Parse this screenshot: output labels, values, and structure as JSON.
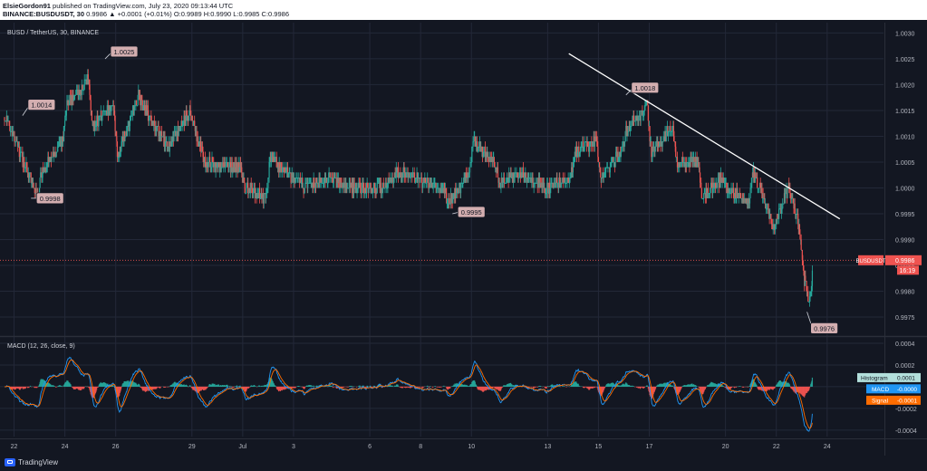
{
  "header": {
    "author": "ElsieGordon91",
    "published": "published on TradingView.com, July 23, 2020 09:13:44 UTC",
    "symbol_line": "BINANCE:BUSDUSDT, 30",
    "price": "0.9986",
    "change": "▲ +0.0001 (+0.01%)",
    "ohlc": "O:0.9989 H:0.9990 L:0.9985 C:0.9986"
  },
  "brand": "TradingView",
  "chart_data": [
    {
      "type": "candlestick",
      "title": "BUSD / TetherUS, 30, BINANCE",
      "x_tick_labels": [
        "22",
        "24",
        "26",
        "29",
        "Jul",
        "3",
        "6",
        "8",
        "10",
        "13",
        "15",
        "17",
        "20",
        "22",
        "24"
      ],
      "y_tick_labels": [
        "1.0030",
        "1.0025",
        "1.0020",
        "1.0015",
        "1.0010",
        "1.0005",
        "1.0000",
        "0.9995",
        "0.9990",
        "0.9985",
        "0.9980",
        "0.9975"
      ],
      "ylim": [
        0.99715,
        1.0032
      ],
      "grid": true,
      "last_price": 0.9986,
      "price_label": "BUSDUSDT",
      "price_value": "0.9986",
      "countdown": "16:19",
      "price_colors": {
        "up": "#26a69a",
        "down": "#ef5350"
      },
      "annotations": [
        {
          "label": "1.0014",
          "date": "Jun 22",
          "value": 1.0014
        },
        {
          "label": "0.9998",
          "date": "Jun 22",
          "value": 0.9998
        },
        {
          "label": "1.0025",
          "date": "Jun 25",
          "value": 1.0025
        },
        {
          "label": "0.9995",
          "date": "Jul 9",
          "value": 0.9995
        },
        {
          "label": "1.0018",
          "date": "Jul 16",
          "value": 1.0018
        },
        {
          "label": "0.9976",
          "date": "Jul 23",
          "value": 0.9976
        }
      ],
      "trendline": {
        "start": {
          "date": "Jul 13",
          "value": 1.0026
        },
        "end": {
          "date": "Jul 24",
          "value": 0.9994
        }
      },
      "path": [
        [
          "Jun 21",
          1.0015
        ],
        [
          "Jun 22",
          1.0009
        ],
        [
          "Jun 22",
          0.9998
        ],
        [
          "Jun 23",
          1.0003
        ],
        [
          "Jun 23",
          1.0009
        ],
        [
          "Jun 24",
          1.0016
        ],
        [
          "Jun 24",
          1.0021
        ],
        [
          "Jun 25",
          1.0012
        ],
        [
          "Jun 25",
          1.0016
        ],
        [
          "Jun 26",
          1.0006
        ],
        [
          "Jun 26",
          1.0018
        ],
        [
          "Jun 27",
          1.0012
        ],
        [
          "Jun 28",
          1.0008
        ],
        [
          "Jun 28",
          1.0015
        ],
        [
          "Jun 29",
          1.0005
        ],
        [
          "Jun 30",
          1.0004
        ],
        [
          "Jun 30",
          1.0004
        ],
        [
          "Jul 1",
          1.0
        ],
        [
          "Jul 1",
          0.9998
        ],
        [
          "Jul 2",
          1.0006
        ],
        [
          "Jul 2",
          1.0002
        ],
        [
          "Jul 3",
          1.0
        ],
        [
          "Jul 4",
          1.0002
        ],
        [
          "Jul 5",
          1.0
        ],
        [
          "Jul 5",
          1.0
        ],
        [
          "Jul 6",
          1.0
        ],
        [
          "Jul 7",
          1.0003
        ],
        [
          "Jul 7",
          1.0002
        ],
        [
          "Jul 8",
          1.0001
        ],
        [
          "Jul 8",
          1.0
        ],
        [
          "Jul 9",
          0.9997
        ],
        [
          "Jul 9",
          1.0003
        ],
        [
          "Jul 10",
          1.0009
        ],
        [
          "Jul 10",
          1.0005
        ],
        [
          "Jul 11",
          1.0001
        ],
        [
          "Jul 11",
          1.0003
        ],
        [
          "Jul 12",
          1.0001
        ],
        [
          "Jul 13",
          1.0
        ],
        [
          "Jul 13",
          1.0002
        ],
        [
          "Jul 14",
          1.0007
        ],
        [
          "Jul 14",
          1.0009
        ],
        [
          "Jul 15",
          1.0002
        ],
        [
          "Jul 15",
          1.0007
        ],
        [
          "Jul 16",
          1.0011
        ],
        [
          "Jul 16",
          1.0016
        ],
        [
          "Jul 17",
          1.0007
        ],
        [
          "Jul 17",
          1.0012
        ],
        [
          "Jul 18",
          1.0005
        ],
        [
          "Jul 18",
          1.0005
        ],
        [
          "Jul 19",
          0.9998
        ],
        [
          "Jul 19",
          1.0002
        ],
        [
          "Jul 20",
          1.0
        ],
        [
          "Jul 20",
          0.9997
        ],
        [
          "Jul 21",
          1.0003
        ],
        [
          "Jul 21",
          0.9998
        ],
        [
          "Jul 21",
          0.9992
        ],
        [
          "Jul 22",
          0.9995
        ],
        [
          "Jul 22",
          1.0
        ],
        [
          "Jul 22",
          0.9992
        ],
        [
          "Jul 23",
          0.9983
        ],
        [
          "Jul 23",
          0.9978
        ],
        [
          "Jul 23",
          0.9986
        ],
        [
          "Jul 23",
          0.999
        ],
        [
          "Jul 23",
          0.9986
        ]
      ]
    },
    {
      "type": "histogram+line",
      "title": "MACD (12, 26, close, 9)",
      "y_tick_labels": [
        "0.0004",
        "0.0002",
        "0.0000",
        "-0.0002",
        "-0.0004"
      ],
      "ylim": [
        -0.00046,
        0.00045
      ],
      "legend": [
        {
          "name": "Histogram",
          "value": "0.0001",
          "color": "#b2dfdb",
          "text": "#131722"
        },
        {
          "name": "MACD",
          "value": "-0.0000",
          "color": "#2196f3",
          "text": "#ffffff"
        },
        {
          "name": "Signal",
          "value": "-0.0001",
          "color": "#ff6d00",
          "text": "#ffffff"
        }
      ],
      "colors": {
        "hist_pos": "#26a69a",
        "hist_neg": "#ef5350",
        "macd": "#2196f3",
        "signal": "#ff6d00"
      }
    }
  ]
}
